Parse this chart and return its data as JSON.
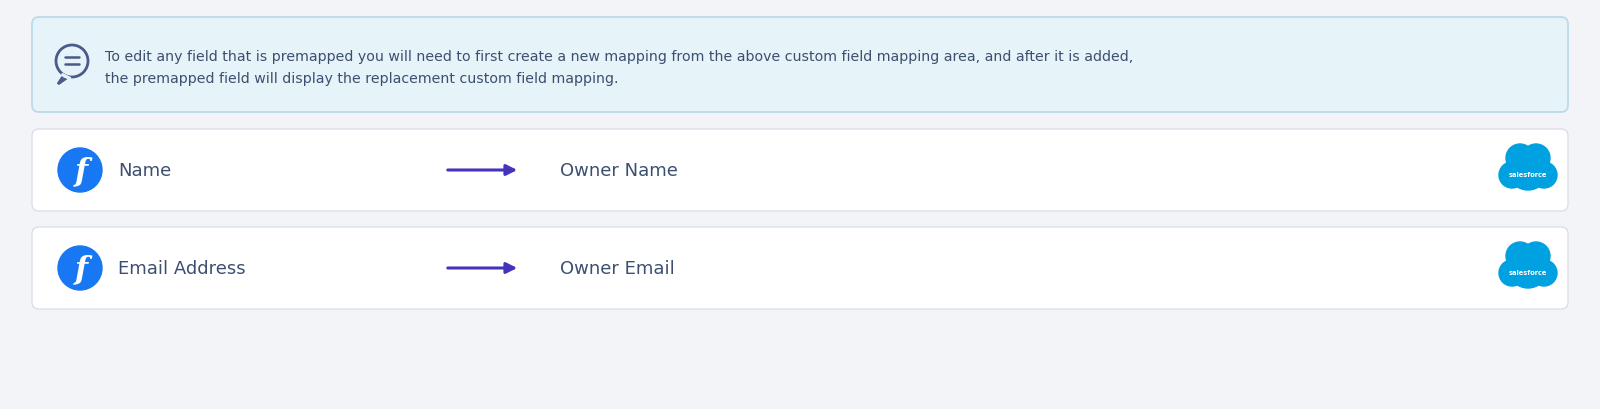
{
  "bg_color": "#f2f4f7",
  "info_box": {
    "bg_color": "#e6f3f8",
    "border_color": "#b8d8e8",
    "text_line1": "To edit any field that is premapped you will need to first create a new mapping from the above custom field mapping area, and after it is added,",
    "text_line2": "the premapped field will display the replacement custom field mapping.",
    "text_color": "#3d4f70",
    "font_size": 10.2
  },
  "rows": [
    {
      "left_label": "Name",
      "right_label": "Owner Name",
      "bg_color": "#ffffff",
      "border_color": "#d8dde6"
    },
    {
      "left_label": "Email Address",
      "right_label": "Owner Email",
      "bg_color": "#ffffff",
      "border_color": "#d8dde6"
    }
  ],
  "facebook_color": "#1877f2",
  "arrow_color": "#4433bb",
  "label_color": "#3d4f70",
  "salesforce_cloud_color": "#00a1e0",
  "icon_color": "#4a5a8a"
}
